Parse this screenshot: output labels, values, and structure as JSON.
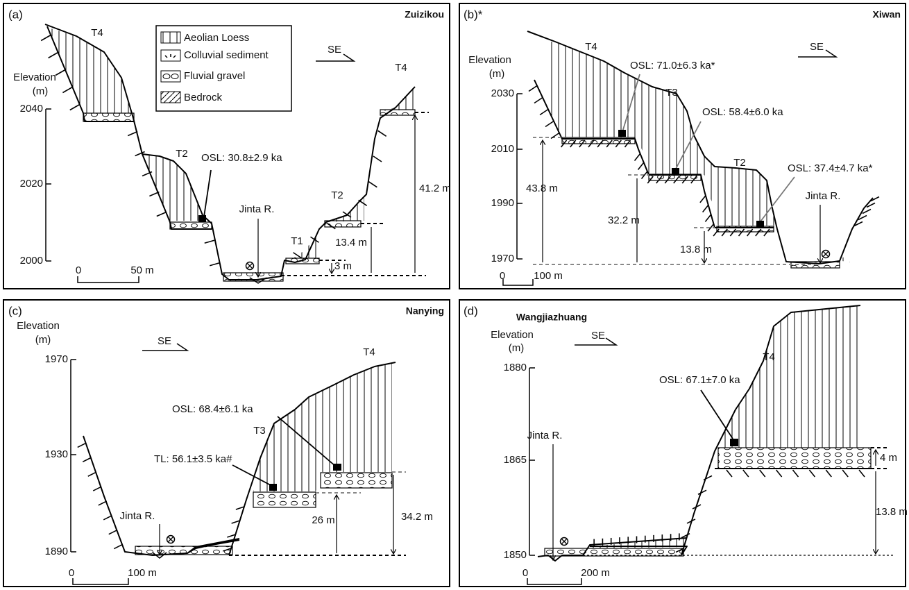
{
  "legend": [
    "Aeolian Loess",
    "Colluvial sediment",
    "Fluvial gravel",
    "Bedrock"
  ],
  "panels": [
    {
      "label": "(a)",
      "site": "Zuizikou",
      "axis_title": [
        "Elevation",
        "(m)"
      ],
      "ticks": [
        "2040",
        "2020",
        "2000"
      ],
      "scale": [
        "0",
        "50 m"
      ],
      "direction": "SE",
      "annotations": [
        "T4",
        "T2",
        "OSL: 30.8±2.9 ka",
        "Jinta R.",
        "T2",
        "T1",
        "T4",
        "41.2 m",
        "13.4 m",
        "3 m"
      ]
    },
    {
      "label": "(b)*",
      "site": "Xiwan",
      "axis_title": [
        "Elevation",
        "(m)"
      ],
      "ticks": [
        "2030",
        "2010",
        "1990",
        "1970"
      ],
      "scale": [
        "0",
        "100 m"
      ],
      "direction": "SE",
      "annotations": [
        "T4",
        "OSL: 71.0±6.3 ka*",
        "T3",
        "OSL: 58.4±6.0 ka",
        "T2",
        "OSL: 37.4±4.7 ka*",
        "Jinta R.",
        "43.8 m",
        "32.2 m",
        "13.8 m"
      ]
    },
    {
      "label": "(c)",
      "site": "Nanying",
      "axis_title": [
        "Elevation",
        "(m)"
      ],
      "ticks": [
        "1970",
        "1930",
        "1890"
      ],
      "scale": [
        "0",
        "100 m"
      ],
      "direction": "SE",
      "annotations": [
        "T4",
        "OSL: 68.4±6.1 ka",
        "T3",
        "TL: 56.1±3.5 ka#",
        "Jinta R.",
        "26 m",
        "34.2 m"
      ]
    },
    {
      "label": "(d)",
      "site": "Wangjiazhuang",
      "axis_title": [
        "Elevation",
        "(m)"
      ],
      "ticks": [
        "1880",
        "1865",
        "1850"
      ],
      "scale": [
        "0",
        "200 m"
      ],
      "direction": "SE",
      "annotations": [
        "OSL: 67.1±7.0 ka",
        "T4",
        "Jinta R.",
        "4 m",
        "13.8 m"
      ]
    }
  ]
}
